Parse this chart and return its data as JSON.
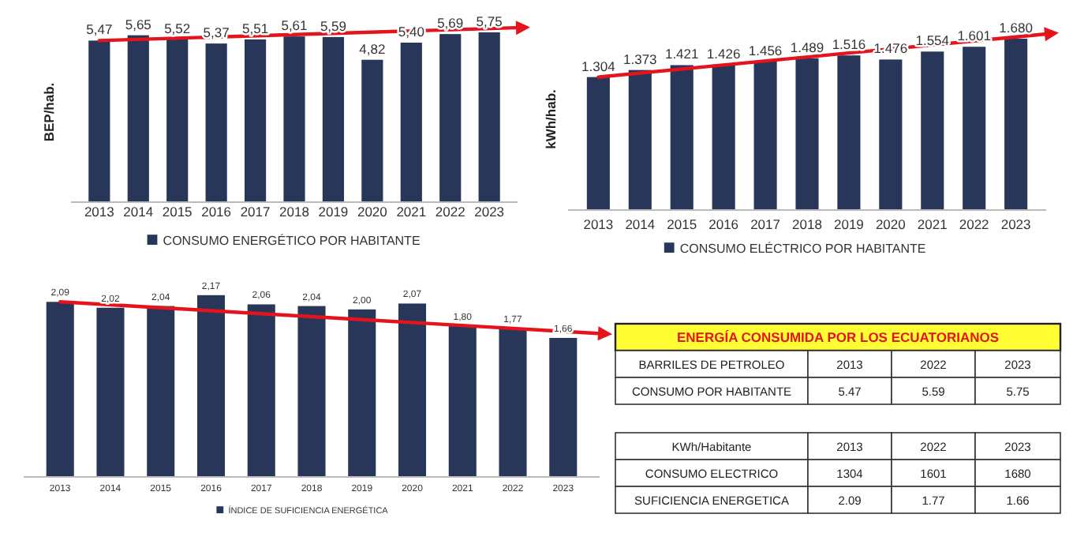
{
  "chart_data": [
    {
      "type": "bar",
      "ylabel": "BEP/hab.",
      "categories": [
        "2013",
        "2014",
        "2015",
        "2016",
        "2017",
        "2018",
        "2019",
        "2020",
        "2021",
        "2022",
        "2023"
      ],
      "tick_labels": "x",
      "legend": "bottom",
      "series": [
        {
          "name": "CONSUMO ENERGÉTICO POR HABITANTE",
          "color": "#283659",
          "values": [
            5.47,
            5.65,
            5.52,
            5.37,
            5.51,
            5.61,
            5.59,
            4.82,
            5.4,
            5.69,
            5.75
          ],
          "value_labels": [
            "5,47",
            "5,65",
            "5,52",
            "5,37",
            "5,51",
            "5,61",
            "5,59",
            "4,82",
            "5,40",
            "5,69",
            "5,75"
          ]
        }
      ]
    },
    {
      "type": "bar",
      "ylabel": "kWh/hab.",
      "categories": [
        "2013",
        "2014",
        "2015",
        "2016",
        "2017",
        "2018",
        "2019",
        "2020",
        "2021",
        "2022",
        "2023"
      ],
      "tick_labels": "x",
      "legend": "bottom",
      "series": [
        {
          "name": "CONSUMO ELÉCTRICO POR HABITANTE",
          "color": "#283659",
          "values": [
            1304,
            1373,
            1421,
            1426,
            1456,
            1489,
            1516,
            1476,
            1554,
            1601,
            1680
          ],
          "value_labels": [
            "1.304",
            "1.373",
            "1.421",
            "1.426",
            "1.456",
            "1.489",
            "1.516",
            "1.476",
            "1.554",
            "1.601",
            "1.680"
          ]
        }
      ]
    },
    {
      "type": "bar",
      "categories": [
        "2013",
        "2014",
        "2015",
        "2016",
        "2017",
        "2018",
        "2019",
        "2020",
        "2021",
        "2022",
        "2023"
      ],
      "tick_labels": "x",
      "legend": "bottom",
      "series": [
        {
          "name": "ÍNDICE DE SUFICIENCIA ENERGÉTICA",
          "color": "#283659",
          "values": [
            2.09,
            2.02,
            2.04,
            2.17,
            2.06,
            2.04,
            2.0,
            2.07,
            1.8,
            1.77,
            1.66
          ],
          "value_labels": [
            "2,09",
            "2,02",
            "2,04",
            "2,17",
            "2,06",
            "2,04",
            "2,00",
            "2,07",
            "1,80",
            "1,77",
            "1,66"
          ]
        }
      ]
    },
    {
      "type": "other",
      "title": "ENERGÍA CONSUMIDA POR LOS ECUATORIANOS",
      "annotations": [
        "BARRILES DE PETROLEO",
        "2013",
        "2022",
        "2023",
        "CONSUMO POR HABITANTE",
        "5.47",
        "5.59",
        "5.75"
      ]
    },
    {
      "type": "other",
      "annotations": [
        "KWh/Habitante",
        "2013",
        "2022",
        "2023",
        "CONSUMO ELECTRICO",
        "1304",
        "1601",
        "1680",
        "SUFICIENCIA ENERGETICA",
        "2.09",
        "1.77",
        "1.66"
      ]
    }
  ]
}
